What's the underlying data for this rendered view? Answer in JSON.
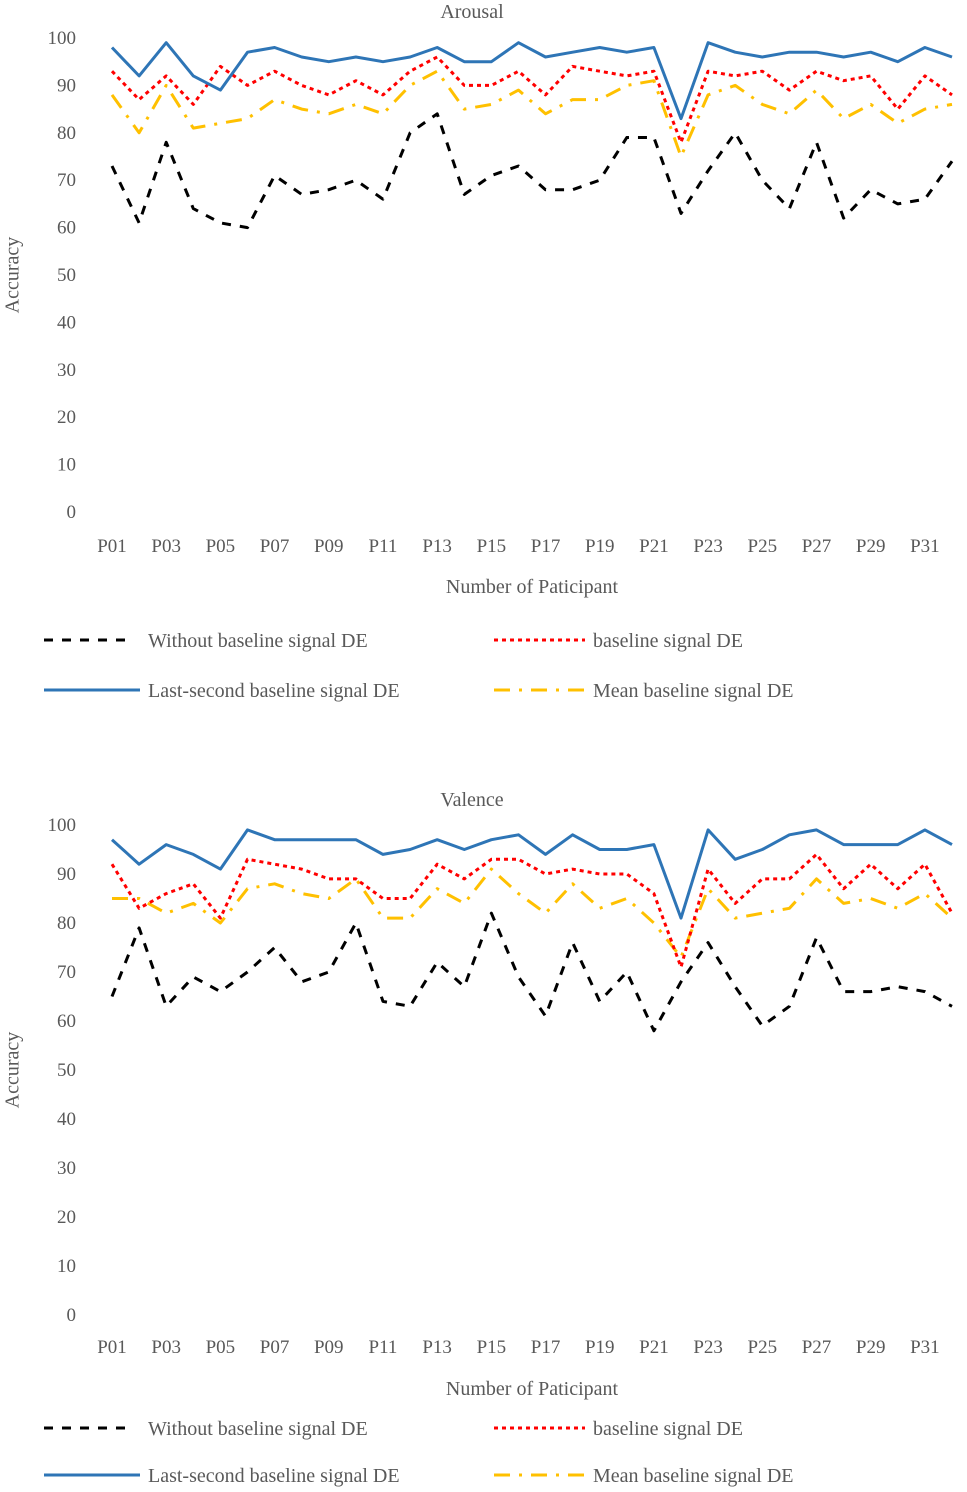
{
  "chart_data": [
    {
      "type": "line",
      "title": "Arousal",
      "xlabel": "Number of Paticipant",
      "ylabel": "Accuracy",
      "ylim": [
        0,
        100
      ],
      "yticks": [
        0,
        10,
        20,
        30,
        40,
        50,
        60,
        70,
        80,
        90,
        100
      ],
      "grid": false,
      "legend_position": "bottom",
      "categories": [
        "P01",
        "P02",
        "P03",
        "P04",
        "P05",
        "P06",
        "P07",
        "P08",
        "P09",
        "P10",
        "P11",
        "P12",
        "P13",
        "P14",
        "P15",
        "P16",
        "P17",
        "P18",
        "P19",
        "P20",
        "P21",
        "P22",
        "P23",
        "P24",
        "P25",
        "P26",
        "P27",
        "P28",
        "P29",
        "P30",
        "P31",
        "P32"
      ],
      "tick_labels": [
        "P01",
        "P03",
        "P05",
        "P07",
        "P09",
        "P11",
        "P13",
        "P15",
        "P17",
        "P19",
        "P21",
        "P23",
        "P25",
        "P27",
        "P29",
        "P31"
      ],
      "series": [
        {
          "name": "Without baseline signal DE",
          "color": "#000000",
          "style": "dash",
          "values": [
            73,
            61,
            78,
            64,
            61,
            60,
            71,
            67,
            68,
            70,
            66,
            80,
            84,
            67,
            71,
            73,
            68,
            68,
            70,
            79,
            79,
            63,
            72,
            80,
            70,
            64,
            78,
            62,
            68,
            65,
            66,
            74
          ]
        },
        {
          "name": "baseline signal DE",
          "color": "#ff0000",
          "style": "dot",
          "values": [
            93,
            87,
            92,
            86,
            94,
            90,
            93,
            90,
            88,
            91,
            88,
            93,
            96,
            90,
            90,
            93,
            88,
            94,
            93,
            92,
            93,
            78,
            93,
            92,
            93,
            89,
            93,
            91,
            92,
            85,
            92,
            88
          ]
        },
        {
          "name": "Last-second baseline signal DE",
          "color": "#2e75b6",
          "style": "solid",
          "values": [
            98,
            92,
            99,
            92,
            89,
            97,
            98,
            96,
            95,
            96,
            95,
            96,
            98,
            95,
            95,
            99,
            96,
            97,
            98,
            97,
            98,
            83,
            99,
            97,
            96,
            97,
            97,
            96,
            97,
            95,
            98,
            96
          ]
        },
        {
          "name": "Mean baseline signal DE",
          "color": "#ffc000",
          "style": "dashdot",
          "values": [
            88,
            80,
            90,
            81,
            82,
            83,
            87,
            85,
            84,
            86,
            84,
            90,
            93,
            85,
            86,
            89,
            84,
            87,
            87,
            90,
            91,
            75,
            88,
            90,
            86,
            84,
            89,
            83,
            86,
            82,
            85,
            86
          ]
        }
      ]
    },
    {
      "type": "line",
      "title": "Valence",
      "xlabel": "Number of Paticipant",
      "ylabel": "Accuracy",
      "ylim": [
        0,
        100
      ],
      "yticks": [
        0,
        10,
        20,
        30,
        40,
        50,
        60,
        70,
        80,
        90,
        100
      ],
      "grid": false,
      "legend_position": "bottom",
      "categories": [
        "P01",
        "P02",
        "P03",
        "P04",
        "P05",
        "P06",
        "P07",
        "P08",
        "P09",
        "P10",
        "P11",
        "P12",
        "P13",
        "P14",
        "P15",
        "P16",
        "P17",
        "P18",
        "P19",
        "P20",
        "P21",
        "P22",
        "P23",
        "P24",
        "P25",
        "P26",
        "P27",
        "P28",
        "P29",
        "P30",
        "P31",
        "P32"
      ],
      "tick_labels": [
        "P01",
        "P03",
        "P05",
        "P07",
        "P09",
        "P11",
        "P13",
        "P15",
        "P17",
        "P19",
        "P21",
        "P23",
        "P25",
        "P27",
        "P29",
        "P31"
      ],
      "series": [
        {
          "name": "Without baseline signal DE",
          "color": "#000000",
          "style": "dash",
          "values": [
            65,
            79,
            63,
            69,
            66,
            70,
            75,
            68,
            70,
            80,
            64,
            63,
            72,
            67,
            82,
            69,
            61,
            76,
            64,
            70,
            58,
            68,
            76,
            67,
            59,
            63,
            77,
            66,
            66,
            67,
            66,
            63
          ]
        },
        {
          "name": "baseline signal DE",
          "color": "#ff0000",
          "style": "dot",
          "values": [
            92,
            83,
            86,
            88,
            81,
            93,
            92,
            91,
            89,
            89,
            85,
            85,
            92,
            89,
            93,
            93,
            90,
            91,
            90,
            90,
            86,
            71,
            91,
            84,
            89,
            89,
            94,
            87,
            92,
            87,
            92,
            82
          ]
        },
        {
          "name": "Last-second baseline signal DE",
          "color": "#2e75b6",
          "style": "solid",
          "values": [
            97,
            92,
            96,
            94,
            91,
            99,
            97,
            97,
            97,
            97,
            94,
            95,
            97,
            95,
            97,
            98,
            94,
            98,
            95,
            95,
            96,
            81,
            99,
            93,
            95,
            98,
            99,
            96,
            96,
            96,
            99,
            96
          ]
        },
        {
          "name": "Mean baseline signal DE",
          "color": "#ffc000",
          "style": "dashdot",
          "values": [
            85,
            85,
            82,
            84,
            80,
            87,
            88,
            86,
            85,
            89,
            81,
            81,
            87,
            84,
            91,
            86,
            82,
            88,
            83,
            85,
            80,
            73,
            87,
            81,
            82,
            83,
            89,
            84,
            85,
            83,
            86,
            81
          ]
        }
      ]
    }
  ]
}
